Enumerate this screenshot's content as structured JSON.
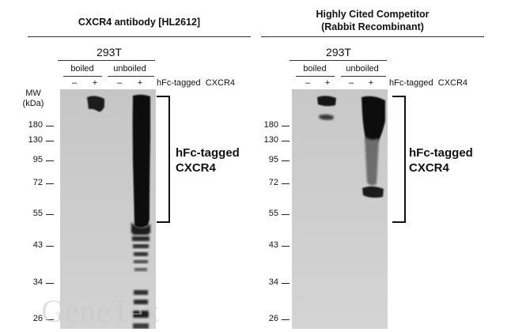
{
  "panels": [
    {
      "title_lines": [
        "CXCR4 antibody [HL2612]"
      ],
      "cell_line": "293T",
      "conditions": [
        "boiled",
        "unboiled"
      ],
      "lane_signs": [
        "–",
        "+",
        "–",
        "+"
      ],
      "lane_header": "hFc-tagged  CXCR4",
      "mw_header": [
        "MW",
        "(kDa)"
      ],
      "mw_markers": [
        "180",
        "130",
        "95",
        "72",
        "55",
        "43",
        "34",
        "26"
      ],
      "band_label": [
        "hFc-tagged",
        "CXCR4"
      ]
    },
    {
      "title_lines": [
        "Highly Cited Competitor",
        "(Rabbit Recombinant)"
      ],
      "cell_line": "293T",
      "conditions": [
        "boiled",
        "unboiled"
      ],
      "lane_signs": [
        "–",
        "+",
        "–",
        "+"
      ],
      "lane_header": "hFc-tagged  CXCR4",
      "mw_markers": [
        "180",
        "130",
        "95",
        "72",
        "55",
        "43",
        "34",
        "26"
      ],
      "band_label": [
        "hFc-tagged",
        "CXCR4"
      ]
    }
  ],
  "watermark": "GeneTex"
}
